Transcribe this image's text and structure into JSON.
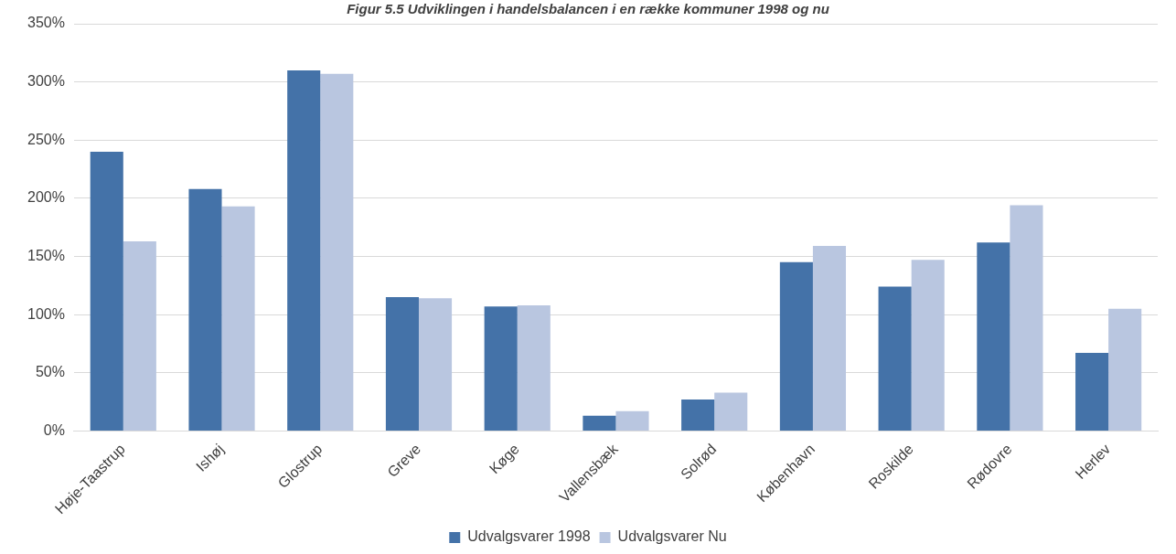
{
  "chart_data": {
    "type": "bar",
    "title": "Figur 5.5 Udviklingen i handelsbalancen i en række kommuner 1998 og nu",
    "categories": [
      "Høje-Taastrup",
      "Ishøj",
      "Glostrup",
      "Greve",
      "Køge",
      "Vallensbæk",
      "Solrød",
      "København",
      "Roskilde",
      "Rødovre",
      "Herlev"
    ],
    "series": [
      {
        "name": "Udvalgsvarer 1998",
        "color": "#4472a8",
        "values": [
          240,
          208,
          310,
          115,
          107,
          13,
          27,
          145,
          124,
          162,
          67
        ]
      },
      {
        "name": "Udvalgsvarer Nu",
        "color": "#b9c6e0",
        "values": [
          163,
          193,
          307,
          114,
          108,
          17,
          33,
          159,
          147,
          194,
          105
        ]
      }
    ],
    "ylim": [
      0,
      350
    ],
    "yticks": [
      {
        "value": 0,
        "label": "0%"
      },
      {
        "value": 50,
        "label": "50%"
      },
      {
        "value": 100,
        "label": "100%"
      },
      {
        "value": 150,
        "label": "150%"
      },
      {
        "value": 200,
        "label": "200%"
      },
      {
        "value": 250,
        "label": "250%"
      },
      {
        "value": 300,
        "label": "300%"
      },
      {
        "value": 350,
        "label": "350%"
      }
    ],
    "grid": "y",
    "legend": "bottom"
  }
}
